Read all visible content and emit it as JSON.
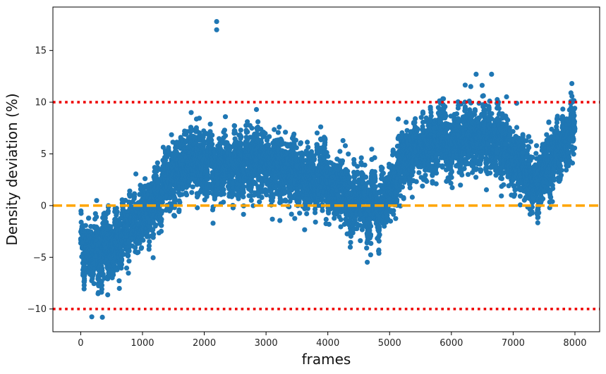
{
  "chart_data": {
    "type": "scatter",
    "title": "",
    "xlabel": "frames",
    "ylabel": "Density deviation (%)",
    "xlim": [
      -450,
      8400
    ],
    "ylim": [
      -12.2,
      19.2
    ],
    "xticks": [
      0,
      1000,
      2000,
      3000,
      4000,
      5000,
      6000,
      7000,
      8000
    ],
    "yticks": [
      -10,
      -5,
      0,
      5,
      10,
      15
    ],
    "grid": false,
    "marker_color": "#1f77b4",
    "n_points": 8000,
    "series": [
      {
        "values_trend": [
          {
            "x": 0,
            "y": -3.8
          },
          {
            "x": 300,
            "y": -4.5
          },
          {
            "x": 600,
            "y": -3.5
          },
          {
            "x": 900,
            "y": -1.5
          },
          {
            "x": 1200,
            "y": 1.0
          },
          {
            "x": 1500,
            "y": 3.0
          },
          {
            "x": 1800,
            "y": 4.5
          },
          {
            "x": 2100,
            "y": 4.0
          },
          {
            "x": 2400,
            "y": 3.5
          },
          {
            "x": 2700,
            "y": 4.0
          },
          {
            "x": 3000,
            "y": 4.2
          },
          {
            "x": 3300,
            "y": 3.5
          },
          {
            "x": 3600,
            "y": 3.0
          },
          {
            "x": 3900,
            "y": 2.5
          },
          {
            "x": 4200,
            "y": 1.5
          },
          {
            "x": 4500,
            "y": 0.5
          },
          {
            "x": 4700,
            "y": -0.5
          },
          {
            "x": 5000,
            "y": 2.0
          },
          {
            "x": 5300,
            "y": 4.5
          },
          {
            "x": 5700,
            "y": 6.0
          },
          {
            "x": 6000,
            "y": 6.5
          },
          {
            "x": 6300,
            "y": 6.5
          },
          {
            "x": 6600,
            "y": 6.5
          },
          {
            "x": 6900,
            "y": 5.5
          },
          {
            "x": 7200,
            "y": 3.5
          },
          {
            "x": 7400,
            "y": 2.5
          },
          {
            "x": 7600,
            "y": 5.0
          },
          {
            "x": 8000,
            "y": 7.0
          }
        ],
        "spread": 2.2,
        "outliers": [
          {
            "x": 2200,
            "y": 17.8
          },
          {
            "x": 2200,
            "y": 17.0
          },
          {
            "x": 350,
            "y": -10.8
          },
          {
            "x": 6400,
            "y": 12.7
          },
          {
            "x": 6650,
            "y": 12.7
          },
          {
            "x": 7950,
            "y": 11.8
          }
        ]
      }
    ],
    "reference_lines": [
      {
        "y": 0,
        "style": "dashed",
        "color": "#ffa500"
      },
      {
        "y": 10,
        "style": "dotted",
        "color": "#ee0000"
      },
      {
        "y": -10,
        "style": "dotted",
        "color": "#ee0000"
      }
    ]
  }
}
